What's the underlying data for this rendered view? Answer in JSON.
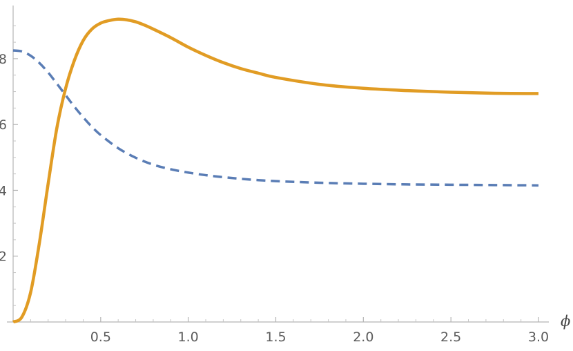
{
  "chart_data": {
    "type": "line",
    "xlabel": "ϕ",
    "ylabel": "",
    "xlim": [
      0,
      3.0
    ],
    "ylim": [
      0,
      9.3
    ],
    "x_ticks": [
      0.5,
      1.0,
      1.5,
      2.0,
      2.5,
      3.0
    ],
    "x_tick_labels": [
      "0.5",
      "1.0",
      "1.5",
      "2.0",
      "2.5",
      "3.0"
    ],
    "y_ticks": [
      2,
      4,
      6,
      8
    ],
    "y_tick_labels": [
      "2",
      "4",
      "6",
      "8"
    ],
    "grid": false,
    "series": [
      {
        "style": "dashed",
        "color": "#5a7db5",
        "x": [
          0.0,
          0.05,
          0.1,
          0.15,
          0.2,
          0.25,
          0.3,
          0.35,
          0.4,
          0.45,
          0.5,
          0.6,
          0.7,
          0.8,
          0.9,
          1.0,
          1.1,
          1.2,
          1.3,
          1.4,
          1.5,
          1.75,
          2.0,
          2.25,
          2.5,
          2.75,
          3.0
        ],
        "y": [
          8.25,
          8.22,
          8.09,
          7.87,
          7.58,
          7.24,
          6.89,
          6.54,
          6.22,
          5.93,
          5.68,
          5.28,
          4.99,
          4.78,
          4.64,
          4.54,
          4.46,
          4.4,
          4.35,
          4.31,
          4.28,
          4.23,
          4.2,
          4.18,
          4.17,
          4.16,
          4.15
        ]
      },
      {
        "style": "solid",
        "color": "#e19c24",
        "x": [
          0.0,
          0.05,
          0.1,
          0.15,
          0.2,
          0.25,
          0.3,
          0.35,
          0.4,
          0.45,
          0.5,
          0.55,
          0.6,
          0.65,
          0.7,
          0.75,
          0.8,
          0.9,
          1.0,
          1.1,
          1.2,
          1.3,
          1.4,
          1.5,
          1.75,
          2.0,
          2.25,
          2.5,
          2.75,
          3.0
        ],
        "y": [
          0.0,
          0.15,
          0.9,
          2.4,
          4.2,
          5.9,
          7.1,
          7.95,
          8.55,
          8.9,
          9.08,
          9.16,
          9.2,
          9.18,
          9.12,
          9.02,
          8.9,
          8.64,
          8.35,
          8.1,
          7.88,
          7.7,
          7.56,
          7.43,
          7.22,
          7.1,
          7.03,
          6.98,
          6.95,
          6.94
        ]
      }
    ]
  }
}
